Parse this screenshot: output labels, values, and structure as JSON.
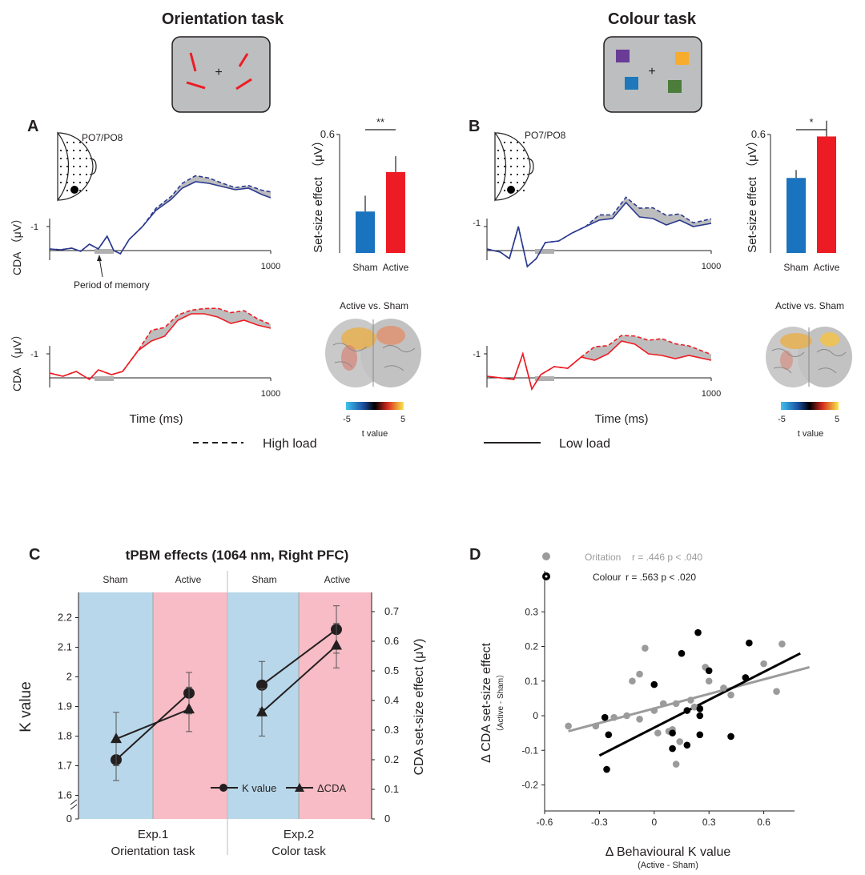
{
  "top": {
    "left_title": "Orientation task",
    "right_title": "Colour task",
    "panelA": {
      "label": "A",
      "electrode": "PO7/PO8",
      "cda_label": "CDA （μV）",
      "tick_y": "-1",
      "tick_x": "1000",
      "memory_note": "Period of memory",
      "bar": {
        "ylabel": "Set-size effect （μV）",
        "ymax_label": "0.6",
        "sig": "**",
        "categories": [
          "Sham",
          "Active"
        ],
        "values": [
          0.21,
          0.41
        ],
        "errors": [
          0.08,
          0.08
        ],
        "ylim": [
          0,
          0.6
        ],
        "colors": [
          "#1a73bf",
          "#ed1c24"
        ]
      },
      "contrast_title": "Active vs. Sham",
      "colorbar": {
        "min": "-5",
        "max": "5",
        "label": "t value"
      }
    },
    "panelB": {
      "label": "B",
      "electrode": "PO7/PO8",
      "cda_label": "CDA （μV）",
      "tick_y": "-1",
      "tick_x": "1000",
      "bar": {
        "ylabel": "Set-size effect （μV）",
        "ymax_label": "0.6",
        "sig": "*",
        "categories": [
          "Sham",
          "Active"
        ],
        "values": [
          0.38,
          0.59
        ],
        "errors": [
          0.04,
          0.08
        ],
        "ylim": [
          0,
          0.6
        ],
        "colors": [
          "#1a73bf",
          "#ed1c24"
        ]
      },
      "contrast_title": "Active vs. Sham",
      "colorbar": {
        "min": "-5",
        "max": "5",
        "label": "t value"
      }
    },
    "time_label": "Time (ms)",
    "legend_high": "High load",
    "legend_low": "Low load",
    "colors": {
      "sham_trace": "#2b3a8f",
      "active_trace": "#ed1c24"
    }
  },
  "panelC": {
    "label": "C",
    "title": "tPBM effects (1064 nm, Right PFC)",
    "top_labels": [
      "Sham",
      "Active",
      "Sham",
      "Active"
    ],
    "ylabel_left": "K value",
    "ylabel_right": "CDA set-size effect (μV)",
    "left_ticks": [
      "2.2",
      "2.1",
      "2",
      "1.9",
      "1.8",
      "1.7",
      "1.6",
      "0"
    ],
    "right_ticks": [
      "0.7",
      "0.6",
      "0.5",
      "0.4",
      "0.3",
      "0.2",
      "0.1",
      "0"
    ],
    "groups": [
      {
        "line1": "Exp.1",
        "line2": "Orientation task"
      },
      {
        "line1": "Exp.2",
        "line2": "Color task"
      }
    ],
    "legend": [
      "K value",
      "ΔCDA"
    ],
    "colors": {
      "sham_bg": "#b8d7ea",
      "active_bg": "#f7bcc5"
    },
    "chart_data": {
      "type": "line",
      "categories": [
        "Exp.1 Sham",
        "Exp.1 Active",
        "Exp.2 Sham",
        "Exp.2 Active"
      ],
      "series": [
        {
          "name": "K value",
          "values": [
            1.72,
            1.945,
            1.972,
            2.16
          ],
          "errors": [
            0.07,
            0.07,
            0.08,
            0.08
          ],
          "axis": "left"
        },
        {
          "name": "ΔCDA",
          "values": [
            0.27,
            0.37,
            0.36,
            0.585
          ],
          "errors": [
            0.09,
            0.075,
            0.08,
            0.075
          ],
          "axis": "right"
        }
      ],
      "ylim_left": [
        1.55,
        2.25
      ],
      "ylim_right": [
        0,
        0.75
      ]
    }
  },
  "panelD": {
    "label": "D",
    "legend": [
      {
        "name": "Oritation",
        "stats": "r = .446   p < .040",
        "color": "#9b9b9b"
      },
      {
        "name": "Colour",
        "stats": "r = .563  p < .020",
        "color": "#000000"
      }
    ],
    "ylabel": "Δ CDA set-size effect",
    "ylabel_sub": "（Active - Sham）",
    "xlabel": "Δ Behavioural K value",
    "xlabel_sub": "(Active - Sham)",
    "x_ticks": [
      "-0.6",
      "-0.3",
      "0",
      "0.3",
      "0.6"
    ],
    "y_ticks": [
      "0.3",
      "0.2",
      "0.1",
      "0",
      "-0.1",
      "-0.2"
    ],
    "chart_data": {
      "type": "scatter",
      "xlim": [
        -0.62,
        0.85
      ],
      "ylim": [
        -0.21,
        0.33
      ],
      "series": [
        {
          "name": "Oritation",
          "color": "#9b9b9b",
          "points": [
            [
              -0.47,
              -0.03
            ],
            [
              -0.32,
              -0.03
            ],
            [
              -0.22,
              -0.005
            ],
            [
              -0.15,
              0.0
            ],
            [
              -0.12,
              0.1
            ],
            [
              -0.08,
              0.12
            ],
            [
              -0.08,
              -0.01
            ],
            [
              -0.05,
              0.195
            ],
            [
              0.0,
              0.015
            ],
            [
              0.02,
              -0.05
            ],
            [
              0.05,
              0.035
            ],
            [
              0.08,
              -0.045
            ],
            [
              0.1,
              -0.04
            ],
            [
              0.12,
              -0.14
            ],
            [
              0.12,
              0.035
            ],
            [
              0.14,
              -0.075
            ],
            [
              0.2,
              0.045
            ],
            [
              0.22,
              0.025
            ],
            [
              0.25,
              0.02
            ],
            [
              0.28,
              0.14
            ],
            [
              0.3,
              0.1
            ],
            [
              0.38,
              0.08
            ],
            [
              0.42,
              0.06
            ],
            [
              0.6,
              0.15
            ],
            [
              0.67,
              0.07
            ],
            [
              0.7,
              0.207
            ]
          ],
          "fit": [
            [
              -0.47,
              -0.045
            ],
            [
              0.85,
              0.14
            ]
          ]
        },
        {
          "name": "Colour",
          "color": "#000000",
          "points": [
            [
              -0.27,
              -0.005
            ],
            [
              -0.25,
              -0.055
            ],
            [
              -0.26,
              -0.155
            ],
            [
              0.0,
              0.09
            ],
            [
              0.1,
              -0.095
            ],
            [
              0.1,
              -0.05
            ],
            [
              0.15,
              0.18
            ],
            [
              0.18,
              -0.085
            ],
            [
              0.18,
              0.015
            ],
            [
              0.24,
              0.24
            ],
            [
              0.25,
              -0.055
            ],
            [
              0.25,
              0.0
            ],
            [
              0.25,
              0.02
            ],
            [
              0.3,
              0.13
            ],
            [
              0.42,
              -0.06
            ],
            [
              0.5,
              0.11
            ],
            [
              0.52,
              0.21
            ]
          ],
          "fit": [
            [
              -0.3,
              -0.115
            ],
            [
              0.8,
              0.18
            ]
          ]
        }
      ]
    }
  }
}
